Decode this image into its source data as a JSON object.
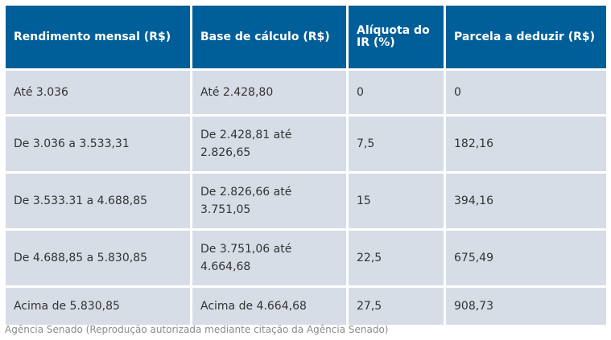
{
  "table": {
    "headers": [
      "Rendimento mensal (R$)",
      "Base de cálculo (R$)",
      "Alíquota do IR (%)",
      "Parcela a deduzir (R$)"
    ],
    "rows": [
      [
        "Até 3.036",
        "Até 2.428,80",
        "0",
        "0"
      ],
      [
        "De 3.036 a 3.533,31",
        "De 2.428,81 até 2.826,65",
        "7,5",
        "182,16"
      ],
      [
        "De 3.533.31 a 4.688,85",
        "De 2.826,66 até 3.751,05",
        "15",
        "394,16"
      ],
      [
        "De 4.688,85 a 5.830,85",
        "De 3.751,06 até 4.664,68",
        "22,5",
        "675,49"
      ],
      [
        "Acima de 5.830,85",
        "Acima de 4.664,68",
        "27,5",
        "908,73"
      ]
    ]
  },
  "caption": "Agência Senado (Reprodução autorizada mediante citação da Agência Senado)",
  "colors": {
    "header_bg": "#005f99",
    "cell_bg": "#d6dde6",
    "header_text": "#ffffff",
    "cell_text": "#333333"
  }
}
